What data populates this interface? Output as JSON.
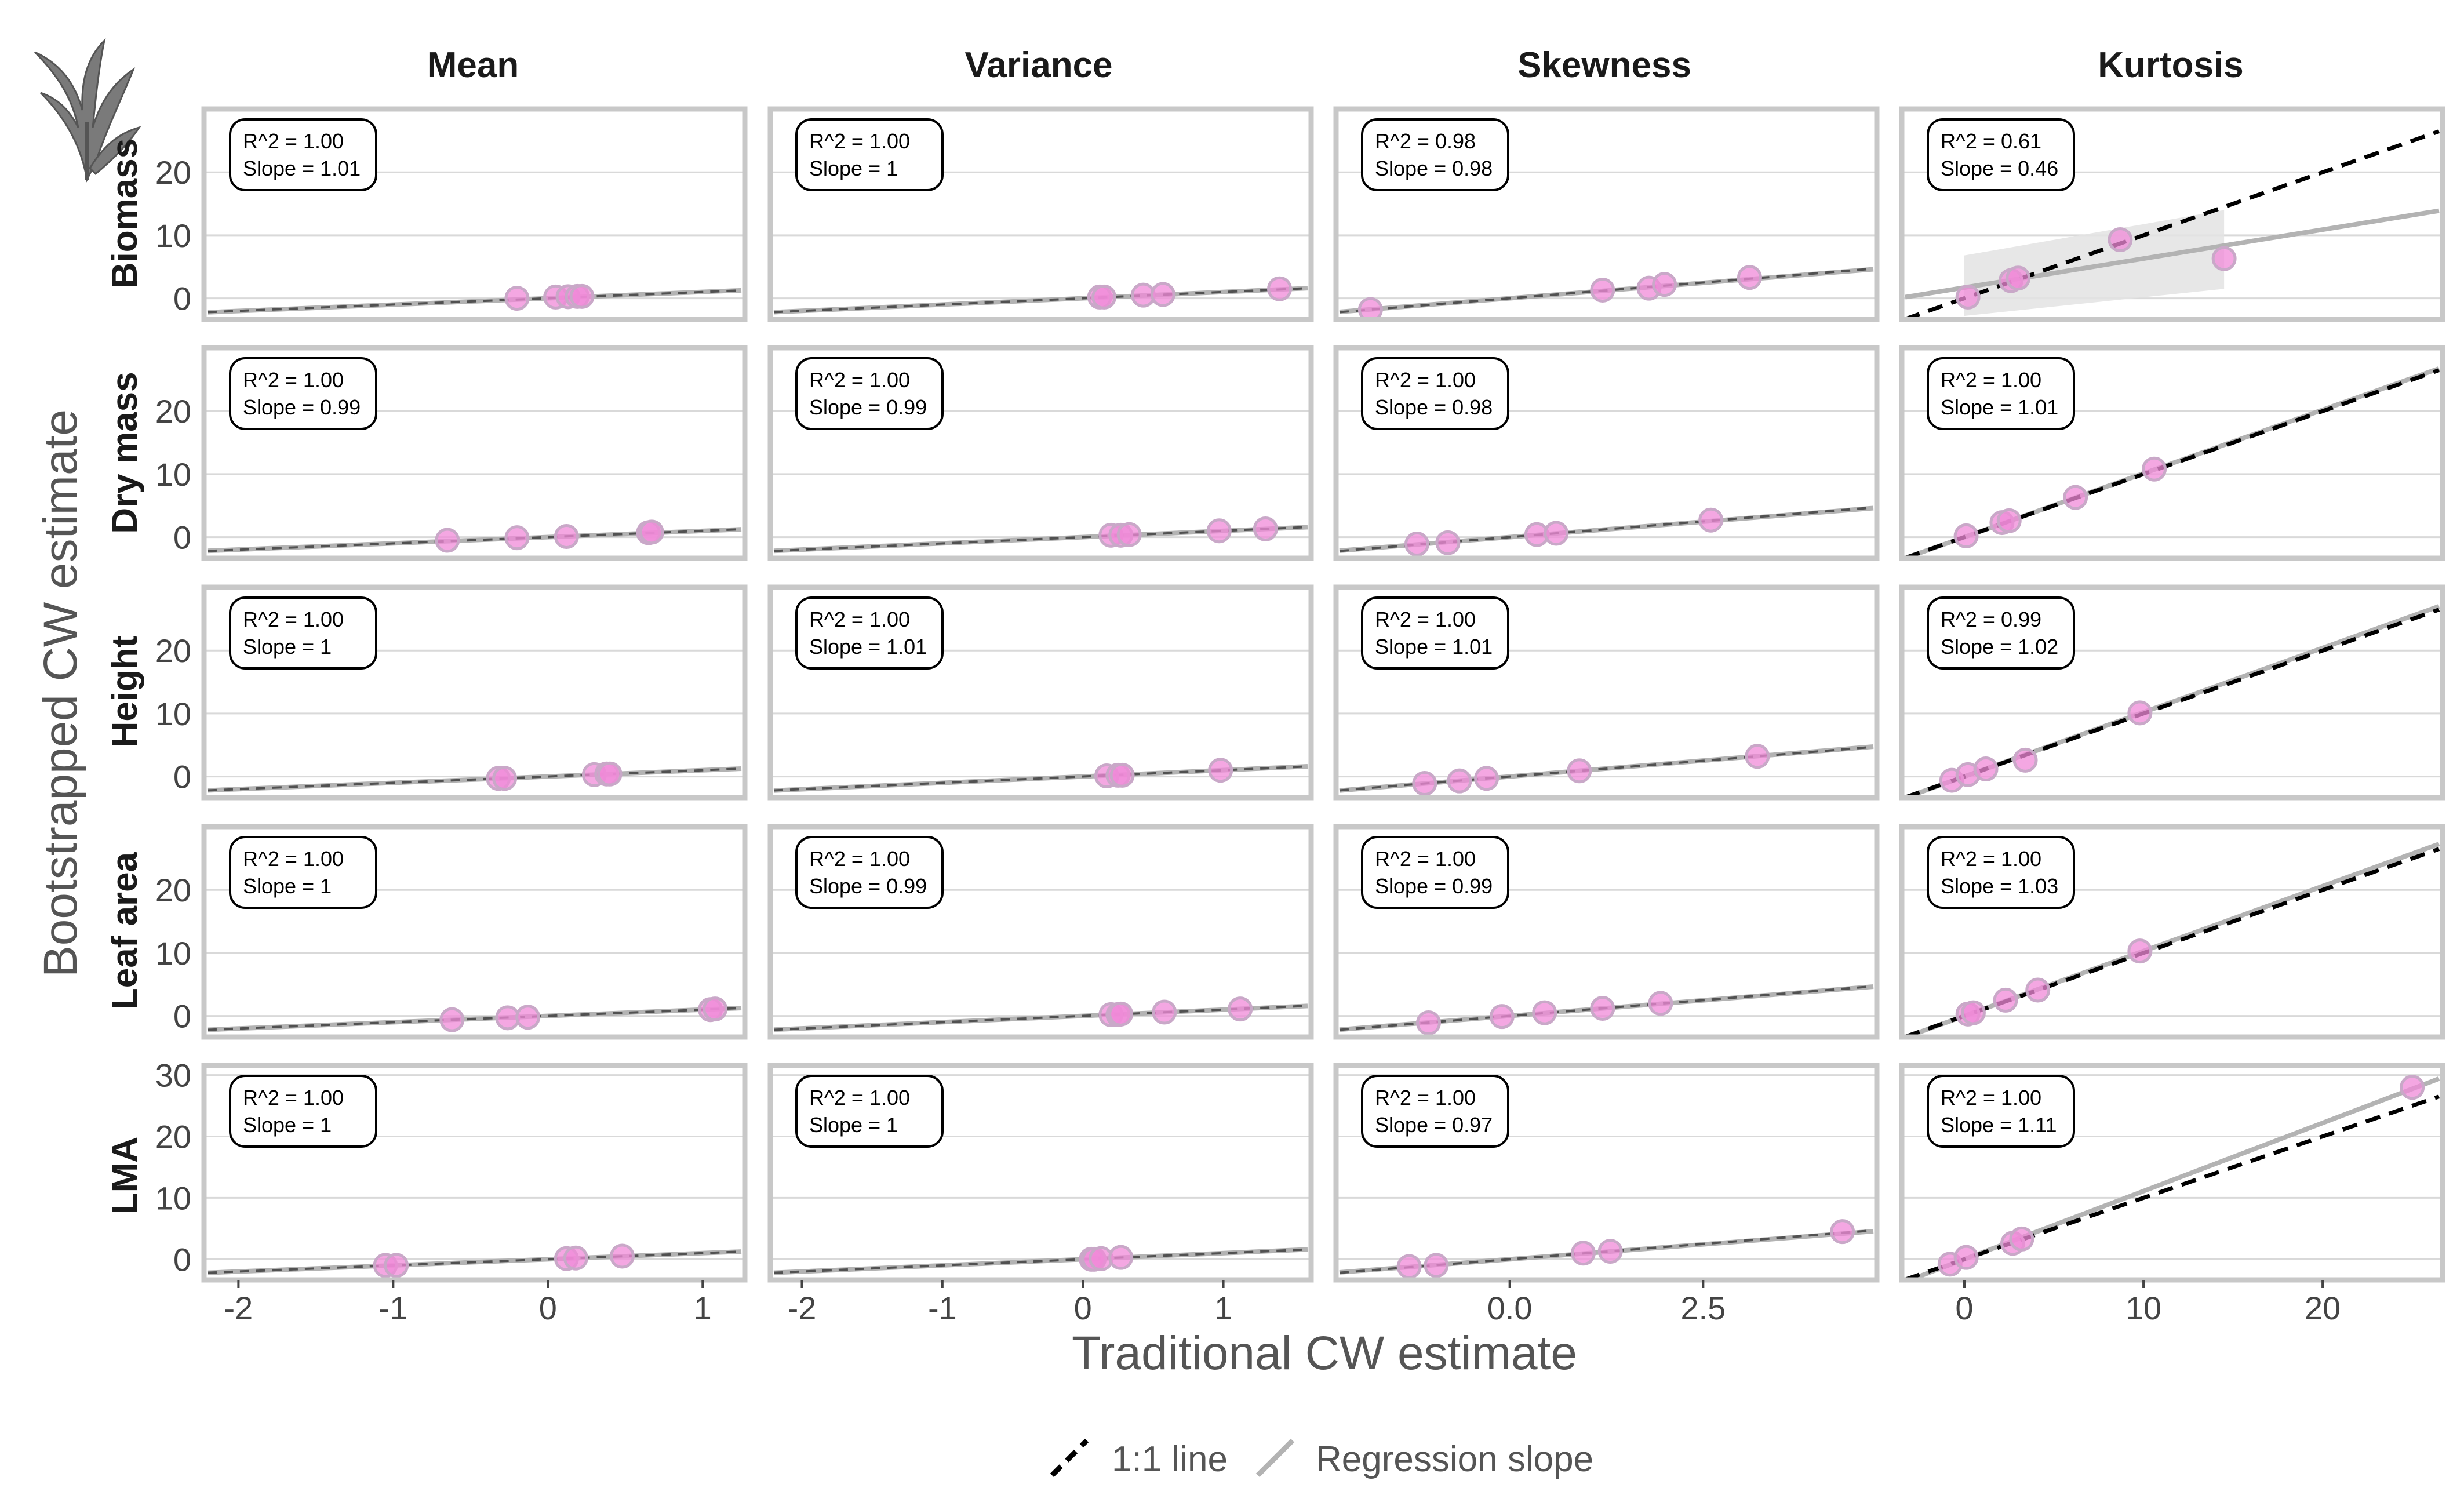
{
  "chart_data": {
    "type": "scatter",
    "layout": "facet-grid",
    "xlabel": "Traditional CW estimate",
    "ylabel": "Bootstrapped CW estimate",
    "columns": [
      "Mean",
      "Variance",
      "Skewness",
      "Kurtosis"
    ],
    "rows": [
      "Biomass",
      "Dry mass",
      "Height",
      "Leaf area",
      "LMA"
    ],
    "grid": "horizontal major lines",
    "legend_position": "bottom",
    "legend": [
      {
        "label": "1:1 line",
        "style": "dashed",
        "color": "#000000"
      },
      {
        "label": "Regression slope",
        "style": "solid",
        "color": "#b3b3b3"
      }
    ],
    "colors": {
      "point_fill": "#f08ad8",
      "point_stroke": "#c9a8c8",
      "panel_border": "#c8c8c8",
      "grid": "#d9d9d9",
      "one_to_one": "#000000",
      "regression": "#b3b3b3",
      "ribbon": "#e3e3e3"
    },
    "icon": "plant-silhouette-icon",
    "x_axes": [
      {
        "range": [
          -2.2,
          1.25
        ],
        "ticks": [
          -2,
          -1,
          0,
          1
        ],
        "tick_labels": [
          "-2",
          "-1",
          "0",
          "1"
        ]
      },
      {
        "range": [
          -2.2,
          1.6
        ],
        "ticks": [
          -2,
          -1,
          0,
          1
        ],
        "tick_labels": [
          "-2",
          "-1",
          "0",
          "1"
        ]
      },
      {
        "range": [
          -2.2,
          4.7
        ],
        "ticks": [
          0,
          2.5
        ],
        "tick_labels": [
          "0.0",
          "2.5"
        ]
      },
      {
        "range": [
          -3.3,
          26.5
        ],
        "ticks": [
          0,
          10,
          20
        ],
        "tick_labels": [
          "0",
          "10",
          "20"
        ]
      }
    ],
    "y_axes": [
      {
        "range": [
          -2.8,
          29.5
        ],
        "ticks": [
          0,
          10,
          20
        ],
        "tick_labels": [
          "0",
          "10",
          "20"
        ]
      },
      {
        "range": [
          -2.8,
          29.5
        ],
        "ticks": [
          0,
          10,
          20
        ],
        "tick_labels": [
          "0",
          "10",
          "20"
        ]
      },
      {
        "range": [
          -2.8,
          29.5
        ],
        "ticks": [
          0,
          10,
          20
        ],
        "tick_labels": [
          "0",
          "10",
          "20"
        ]
      },
      {
        "range": [
          -2.8,
          29.5
        ],
        "ticks": [
          0,
          10,
          20
        ],
        "tick_labels": [
          "0",
          "10",
          "20"
        ]
      },
      {
        "range": [
          -2.8,
          31.0
        ],
        "ticks": [
          0,
          10,
          20,
          30
        ],
        "tick_labels": [
          "0",
          "10",
          "20",
          "30"
        ]
      }
    ],
    "panels": [
      [
        {
          "r2": "R^2 = 1.00",
          "slope": "Slope = 1.01",
          "slope_value": 1.01,
          "intercept": 0.0,
          "points": [
            [
              -0.2,
              0.0
            ],
            [
              0.05,
              0.2
            ],
            [
              0.13,
              0.25
            ],
            [
              0.19,
              0.3
            ],
            [
              0.22,
              0.3
            ]
          ]
        },
        {
          "r2": "R^2 = 1.00",
          "slope": "Slope = 1",
          "slope_value": 1.0,
          "intercept": 0.0,
          "points": [
            [
              0.12,
              0.2
            ],
            [
              0.15,
              0.2
            ],
            [
              0.43,
              0.5
            ],
            [
              0.57,
              0.6
            ],
            [
              1.4,
              1.5
            ]
          ]
        },
        {
          "r2": "R^2 = 0.98",
          "slope": "Slope = 0.98",
          "slope_value": 0.98,
          "intercept": 0.0,
          "points": [
            [
              -1.8,
              -1.8
            ],
            [
              1.2,
              1.3
            ],
            [
              1.8,
              1.6
            ],
            [
              2.0,
              2.2
            ],
            [
              3.1,
              3.3
            ]
          ]
        },
        {
          "r2": "R^2 = 0.61",
          "slope": "Slope = 0.46",
          "slope_value": 0.46,
          "intercept": 1.7,
          "ribbon": {
            "x": [
              0,
              14.5
            ],
            "lo": [
              -2.8,
              1.5
            ],
            "hi": [
              6.8,
              14.0
            ]
          },
          "points": [
            [
              0.2,
              0.2
            ],
            [
              2.6,
              2.8
            ],
            [
              3.0,
              3.2
            ],
            [
              8.7,
              9.3
            ],
            [
              14.5,
              6.3
            ]
          ]
        }
      ],
      [
        {
          "r2": "R^2 = 1.00",
          "slope": "Slope = 0.99",
          "slope_value": 0.99,
          "intercept": 0.0,
          "points": [
            [
              -0.65,
              -0.5
            ],
            [
              -0.2,
              -0.1
            ],
            [
              0.12,
              0.1
            ],
            [
              0.65,
              0.7
            ],
            [
              0.67,
              0.8
            ]
          ]
        },
        {
          "r2": "R^2 = 1.00",
          "slope": "Slope = 0.99",
          "slope_value": 0.99,
          "intercept": 0.0,
          "points": [
            [
              0.2,
              0.3
            ],
            [
              0.27,
              0.3
            ],
            [
              0.33,
              0.4
            ],
            [
              0.97,
              1.0
            ],
            [
              1.3,
              1.3
            ]
          ]
        },
        {
          "r2": "R^2 = 1.00",
          "slope": "Slope = 0.98",
          "slope_value": 0.98,
          "intercept": 0.0,
          "points": [
            [
              -1.2,
              -1.1
            ],
            [
              -0.8,
              -0.9
            ],
            [
              0.35,
              0.4
            ],
            [
              0.6,
              0.6
            ],
            [
              2.6,
              2.7
            ]
          ]
        },
        {
          "r2": "R^2 = 1.00",
          "slope": "Slope = 1.01",
          "slope_value": 1.01,
          "intercept": 0.0,
          "points": [
            [
              0.1,
              0.2
            ],
            [
              2.1,
              2.3
            ],
            [
              2.5,
              2.6
            ],
            [
              6.2,
              6.3
            ],
            [
              10.6,
              10.8
            ]
          ]
        }
      ],
      [
        {
          "r2": "R^2 = 1.00",
          "slope": "Slope = 1",
          "slope_value": 1.0,
          "intercept": 0.0,
          "points": [
            [
              -0.32,
              -0.3
            ],
            [
              -0.28,
              -0.3
            ],
            [
              0.3,
              0.3
            ],
            [
              0.38,
              0.4
            ],
            [
              0.4,
              0.4
            ]
          ]
        },
        {
          "r2": "R^2 = 1.00",
          "slope": "Slope = 1.01",
          "slope_value": 1.01,
          "intercept": 0.0,
          "points": [
            [
              0.17,
              0.1
            ],
            [
              0.25,
              0.2
            ],
            [
              0.28,
              0.2
            ],
            [
              0.98,
              1.0
            ]
          ]
        },
        {
          "r2": "R^2 = 1.00",
          "slope": "Slope = 1.01",
          "slope_value": 1.01,
          "intercept": 0.0,
          "points": [
            [
              -1.1,
              -1.1
            ],
            [
              -0.65,
              -0.7
            ],
            [
              -0.3,
              -0.3
            ],
            [
              0.9,
              0.9
            ],
            [
              3.2,
              3.2
            ]
          ]
        },
        {
          "r2": "R^2 = 0.99",
          "slope": "Slope = 1.02",
          "slope_value": 1.02,
          "intercept": 0.0,
          "points": [
            [
              -0.7,
              -0.6
            ],
            [
              0.2,
              0.3
            ],
            [
              1.2,
              1.2
            ],
            [
              3.4,
              2.6
            ],
            [
              9.8,
              10.1
            ]
          ]
        }
      ],
      [
        {
          "r2": "R^2 = 1.00",
          "slope": "Slope = 1",
          "slope_value": 1.0,
          "intercept": 0.0,
          "points": [
            [
              -0.62,
              -0.6
            ],
            [
              -0.26,
              -0.3
            ],
            [
              -0.13,
              -0.2
            ],
            [
              1.05,
              1.0
            ],
            [
              1.08,
              1.1
            ]
          ]
        },
        {
          "r2": "R^2 = 1.00",
          "slope": "Slope = 0.99",
          "slope_value": 0.99,
          "intercept": 0.0,
          "points": [
            [
              0.2,
              0.2
            ],
            [
              0.25,
              0.2
            ],
            [
              0.27,
              0.3
            ],
            [
              0.58,
              0.6
            ],
            [
              1.12,
              1.1
            ]
          ]
        },
        {
          "r2": "R^2 = 1.00",
          "slope": "Slope = 0.99",
          "slope_value": 0.99,
          "intercept": 0.0,
          "points": [
            [
              -1.05,
              -1.1
            ],
            [
              -0.1,
              -0.1
            ],
            [
              0.45,
              0.5
            ],
            [
              1.2,
              1.2
            ],
            [
              1.95,
              2.0
            ]
          ]
        },
        {
          "r2": "R^2 = 1.00",
          "slope": "Slope = 1.03",
          "slope_value": 1.03,
          "intercept": 0.0,
          "points": [
            [
              0.2,
              0.3
            ],
            [
              0.5,
              0.5
            ],
            [
              2.3,
              2.5
            ],
            [
              4.1,
              4.1
            ],
            [
              9.8,
              10.3
            ]
          ]
        }
      ],
      [
        {
          "r2": "R^2 = 1.00",
          "slope": "Slope = 1",
          "slope_value": 1.0,
          "intercept": 0.0,
          "points": [
            [
              -1.05,
              -1.0
            ],
            [
              -0.98,
              -1.0
            ],
            [
              0.12,
              0.1
            ],
            [
              0.18,
              0.2
            ],
            [
              0.48,
              0.5
            ]
          ]
        },
        {
          "r2": "R^2 = 1.00",
          "slope": "Slope = 1",
          "slope_value": 1.0,
          "intercept": 0.0,
          "points": [
            [
              0.06,
              0.0
            ],
            [
              0.08,
              0.0
            ],
            [
              0.13,
              0.1
            ],
            [
              0.27,
              0.3
            ]
          ]
        },
        {
          "r2": "R^2 = 1.00",
          "slope": "Slope = 0.97",
          "slope_value": 0.97,
          "intercept": 0.0,
          "points": [
            [
              -1.3,
              -1.2
            ],
            [
              -0.95,
              -1.0
            ],
            [
              0.95,
              1.0
            ],
            [
              1.3,
              1.3
            ],
            [
              4.3,
              4.5
            ]
          ]
        },
        {
          "r2": "R^2 = 1.00",
          "slope": "Slope = 1.11",
          "slope_value": 1.11,
          "intercept": 0.0,
          "points": [
            [
              -0.8,
              -0.8
            ],
            [
              0.1,
              0.3
            ],
            [
              2.7,
              2.6
            ],
            [
              3.2,
              3.3
            ],
            [
              25.0,
              28.0
            ]
          ]
        }
      ]
    ]
  }
}
